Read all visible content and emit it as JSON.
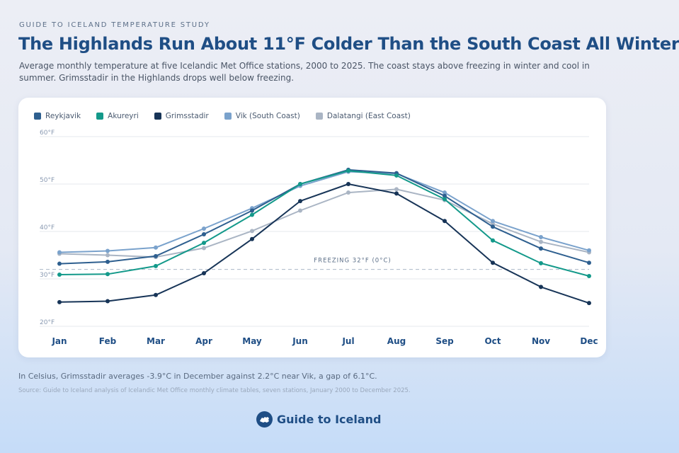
{
  "header": {
    "kicker": "GUIDE TO ICELAND TEMPERATURE STUDY",
    "title": "The Highlands Run About 11°F Colder Than the South Coast All Winter",
    "subtitle": "Average monthly temperature at five Icelandic Met Office stations, 2000 to 2025. The coast stays above freezing in winter and cool in summer. Grimsstadir in the Highlands drops well below freezing."
  },
  "chart_data": {
    "type": "line",
    "categories": [
      "Jan",
      "Feb",
      "Mar",
      "Apr",
      "May",
      "Jun",
      "Jul",
      "Aug",
      "Sep",
      "Oct",
      "Nov",
      "Dec"
    ],
    "ylim": [
      20,
      60
    ],
    "yticks": [
      20,
      30,
      40,
      50,
      60
    ],
    "ytick_labels": [
      "20°F",
      "30°F",
      "40°F",
      "50°F",
      "60°F"
    ],
    "grid": true,
    "legend_position": "top-left",
    "series": [
      {
        "name": "Reykjavik",
        "color": "#2e5f8f",
        "values": [
          33.2,
          33.6,
          34.8,
          39.4,
          44.4,
          50.0,
          53.0,
          52.3,
          47.5,
          41.0,
          36.4,
          33.4
        ]
      },
      {
        "name": "Akureyri",
        "color": "#13998a",
        "values": [
          30.9,
          31.0,
          32.7,
          37.6,
          43.5,
          50.0,
          52.8,
          51.8,
          46.8,
          38.1,
          33.3,
          30.6
        ]
      },
      {
        "name": "Grimsstadir",
        "color": "#173457",
        "values": [
          25.1,
          25.3,
          26.6,
          31.2,
          38.4,
          46.4,
          50.0,
          48.0,
          42.2,
          33.4,
          28.3,
          24.9
        ]
      },
      {
        "name": "Vik (South Coast)",
        "color": "#7aa2cc",
        "values": [
          35.6,
          35.9,
          36.6,
          40.6,
          44.9,
          49.6,
          52.6,
          52.2,
          48.2,
          42.2,
          38.8,
          36.0
        ]
      },
      {
        "name": "Dalatangi (East Coast)",
        "color": "#aab5c4",
        "values": [
          35.3,
          35.0,
          34.6,
          36.5,
          40.1,
          44.4,
          48.2,
          48.9,
          46.6,
          41.6,
          37.8,
          35.6
        ]
      }
    ],
    "reference_line": {
      "value": 32,
      "label": "FREEZING  32°F (0°C)"
    }
  },
  "footer": {
    "note": "In Celsius, Grimsstadir averages -3.9°C in December against 2.2°C near Vik, a gap of 6.1°C.",
    "source": "Source: Guide to Iceland analysis of Icelandic Met Office monthly climate tables, seven stations, January 2000 to December 2025.",
    "brand": "Guide to Iceland",
    "brand_icon": "iceland-map-icon"
  }
}
